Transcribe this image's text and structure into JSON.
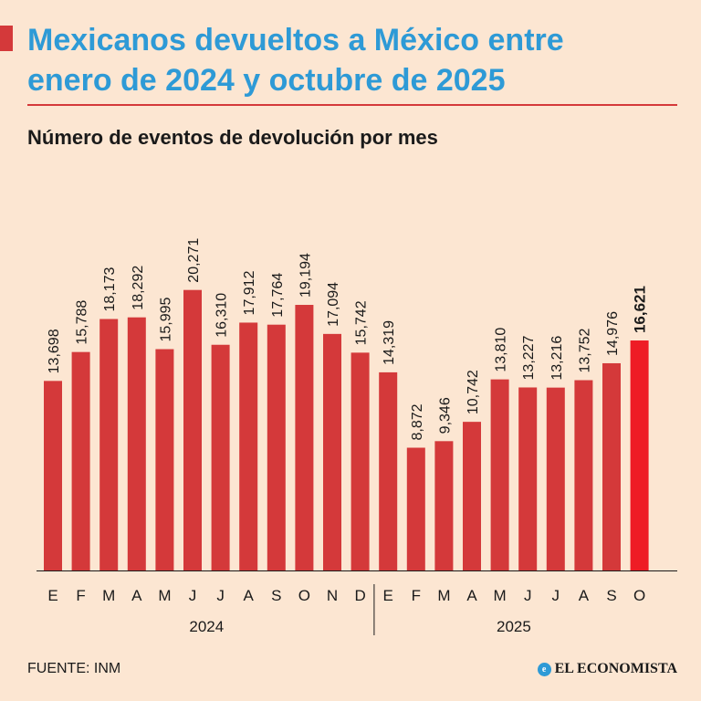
{
  "header": {
    "title_line1": "Mexicanos devueltos a México entre",
    "title_line2": "enero de 2024 y octubre de 2025",
    "subtitle": "Número de eventos de devolución por mes"
  },
  "footer": {
    "source": "FUENTE: INM",
    "brand": "EL ECONOMISTA"
  },
  "colors": {
    "bar": "#d4393a",
    "bar_highlight": "#ee1c25",
    "title": "#2e9ad6"
  },
  "chart_data": {
    "type": "bar",
    "title": "Número de eventos de devolución por mes",
    "categories": [
      "E",
      "F",
      "M",
      "A",
      "M",
      "J",
      "J",
      "A",
      "S",
      "O",
      "N",
      "D",
      "E",
      "F",
      "M",
      "A",
      "M",
      "J",
      "J",
      "A",
      "S",
      "O"
    ],
    "value_labels": [
      "13,698",
      "15,788",
      "18,173",
      "18,292",
      "15,995",
      "20,271",
      "16,310",
      "17,912",
      "17,764",
      "19,194",
      "17,094",
      "15,742",
      "14,319",
      "8,872",
      "9,346",
      "10,742",
      "13,810",
      "13,227",
      "13,216",
      "13,752",
      "14,976",
      "16,621"
    ],
    "values": [
      13698,
      15788,
      18173,
      18292,
      15995,
      20271,
      16310,
      17912,
      17764,
      19194,
      17094,
      15742,
      14319,
      8872,
      9346,
      10742,
      13810,
      13227,
      13216,
      13752,
      14976,
      16621
    ],
    "groups": [
      {
        "label": "2024",
        "start": 0,
        "end": 11
      },
      {
        "label": "2025",
        "start": 12,
        "end": 21
      }
    ],
    "highlight_index": 21,
    "ylim": [
      0,
      25000
    ],
    "xlabel": "",
    "ylabel": ""
  }
}
